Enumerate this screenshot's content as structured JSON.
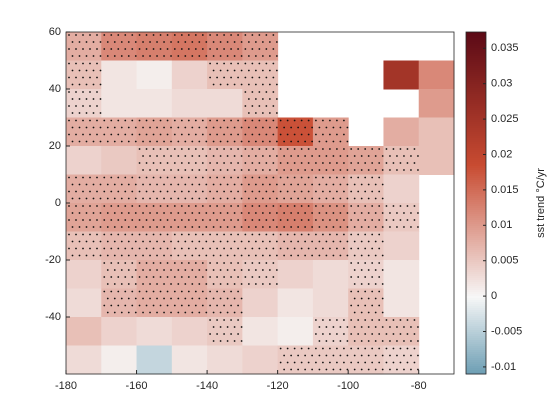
{
  "chart_data": {
    "type": "heatmap",
    "x": [
      -175,
      -165,
      -155,
      -145,
      -135,
      -125,
      -115,
      -105,
      -95,
      -85,
      -75
    ],
    "y": [
      55,
      45,
      35,
      25,
      15,
      5,
      -5,
      -15,
      -25,
      -35,
      -45,
      -55
    ],
    "values": [
      [
        0.008,
        0.012,
        0.013,
        0.014,
        0.012,
        0.01,
        null,
        null,
        null,
        null,
        null
      ],
      [
        0.006,
        0.002,
        0.001,
        0.004,
        0.006,
        0.006,
        null,
        null,
        null,
        0.025,
        0.012
      ],
      [
        0.004,
        0.002,
        0.002,
        0.003,
        0.003,
        0.006,
        null,
        null,
        null,
        null,
        0.01
      ],
      [
        0.008,
        0.008,
        0.009,
        0.008,
        0.01,
        0.012,
        0.018,
        0.01,
        null,
        0.008,
        0.006
      ],
      [
        0.004,
        0.005,
        0.006,
        0.006,
        0.007,
        0.008,
        0.01,
        0.01,
        0.009,
        0.006,
        0.006
      ],
      [
        0.008,
        0.008,
        0.007,
        0.007,
        0.008,
        0.01,
        0.009,
        0.008,
        0.006,
        0.004,
        null
      ],
      [
        0.009,
        0.01,
        0.01,
        0.01,
        0.01,
        0.012,
        0.013,
        0.011,
        0.008,
        0.005,
        null
      ],
      [
        0.006,
        0.007,
        0.007,
        0.006,
        0.006,
        0.006,
        0.007,
        0.007,
        0.005,
        0.004,
        null
      ],
      [
        0.004,
        0.006,
        0.008,
        0.008,
        0.006,
        0.005,
        0.004,
        0.003,
        0.004,
        0.002,
        null
      ],
      [
        0.003,
        0.007,
        0.008,
        0.008,
        0.007,
        0.004,
        0.002,
        0.003,
        0.006,
        0.002,
        null
      ],
      [
        0.006,
        0.004,
        0.003,
        0.004,
        0.005,
        0.002,
        0.001,
        0.004,
        0.006,
        0.006,
        null
      ],
      [
        0.003,
        0.001,
        -0.004,
        0.002,
        0.003,
        0.004,
        0.005,
        0.005,
        0.005,
        0.004,
        null
      ]
    ],
    "significant": [
      [
        true,
        true,
        true,
        true,
        true,
        true,
        false,
        false,
        false,
        false,
        false
      ],
      [
        true,
        false,
        false,
        false,
        true,
        true,
        false,
        false,
        false,
        false,
        false
      ],
      [
        true,
        false,
        false,
        false,
        false,
        true,
        false,
        false,
        false,
        false,
        false
      ],
      [
        true,
        true,
        true,
        true,
        true,
        true,
        true,
        true,
        false,
        false,
        false
      ],
      [
        false,
        false,
        true,
        true,
        true,
        true,
        true,
        true,
        true,
        true,
        false
      ],
      [
        true,
        true,
        true,
        true,
        true,
        true,
        true,
        true,
        true,
        false,
        false
      ],
      [
        true,
        true,
        true,
        true,
        true,
        true,
        true,
        true,
        true,
        true,
        false
      ],
      [
        true,
        true,
        true,
        true,
        true,
        true,
        true,
        true,
        true,
        false,
        false
      ],
      [
        false,
        true,
        true,
        true,
        true,
        true,
        false,
        false,
        true,
        false,
        false
      ],
      [
        false,
        true,
        true,
        true,
        true,
        false,
        false,
        false,
        true,
        false,
        false
      ],
      [
        false,
        false,
        false,
        false,
        true,
        false,
        false,
        true,
        true,
        true,
        false
      ],
      [
        false,
        false,
        false,
        false,
        false,
        false,
        true,
        true,
        true,
        true,
        false
      ]
    ],
    "xlim": [
      -180,
      -70
    ],
    "ylim": [
      -60,
      60
    ],
    "xticks": [
      -180,
      -160,
      -140,
      -120,
      -100,
      -80
    ],
    "yticks": [
      -40,
      -20,
      0,
      20,
      40,
      60
    ],
    "clim": [
      -0.011,
      0.0373
    ],
    "cticks": [
      -0.01,
      -0.005,
      0,
      0.005,
      0.01,
      0.015,
      0.02,
      0.025,
      0.03,
      0.035
    ],
    "colormap": [
      "#6b9db3",
      "#f7f7f7",
      "#c84b31",
      "#5c0a16"
    ],
    "colorbar_label": "sst trend °C/yr"
  }
}
